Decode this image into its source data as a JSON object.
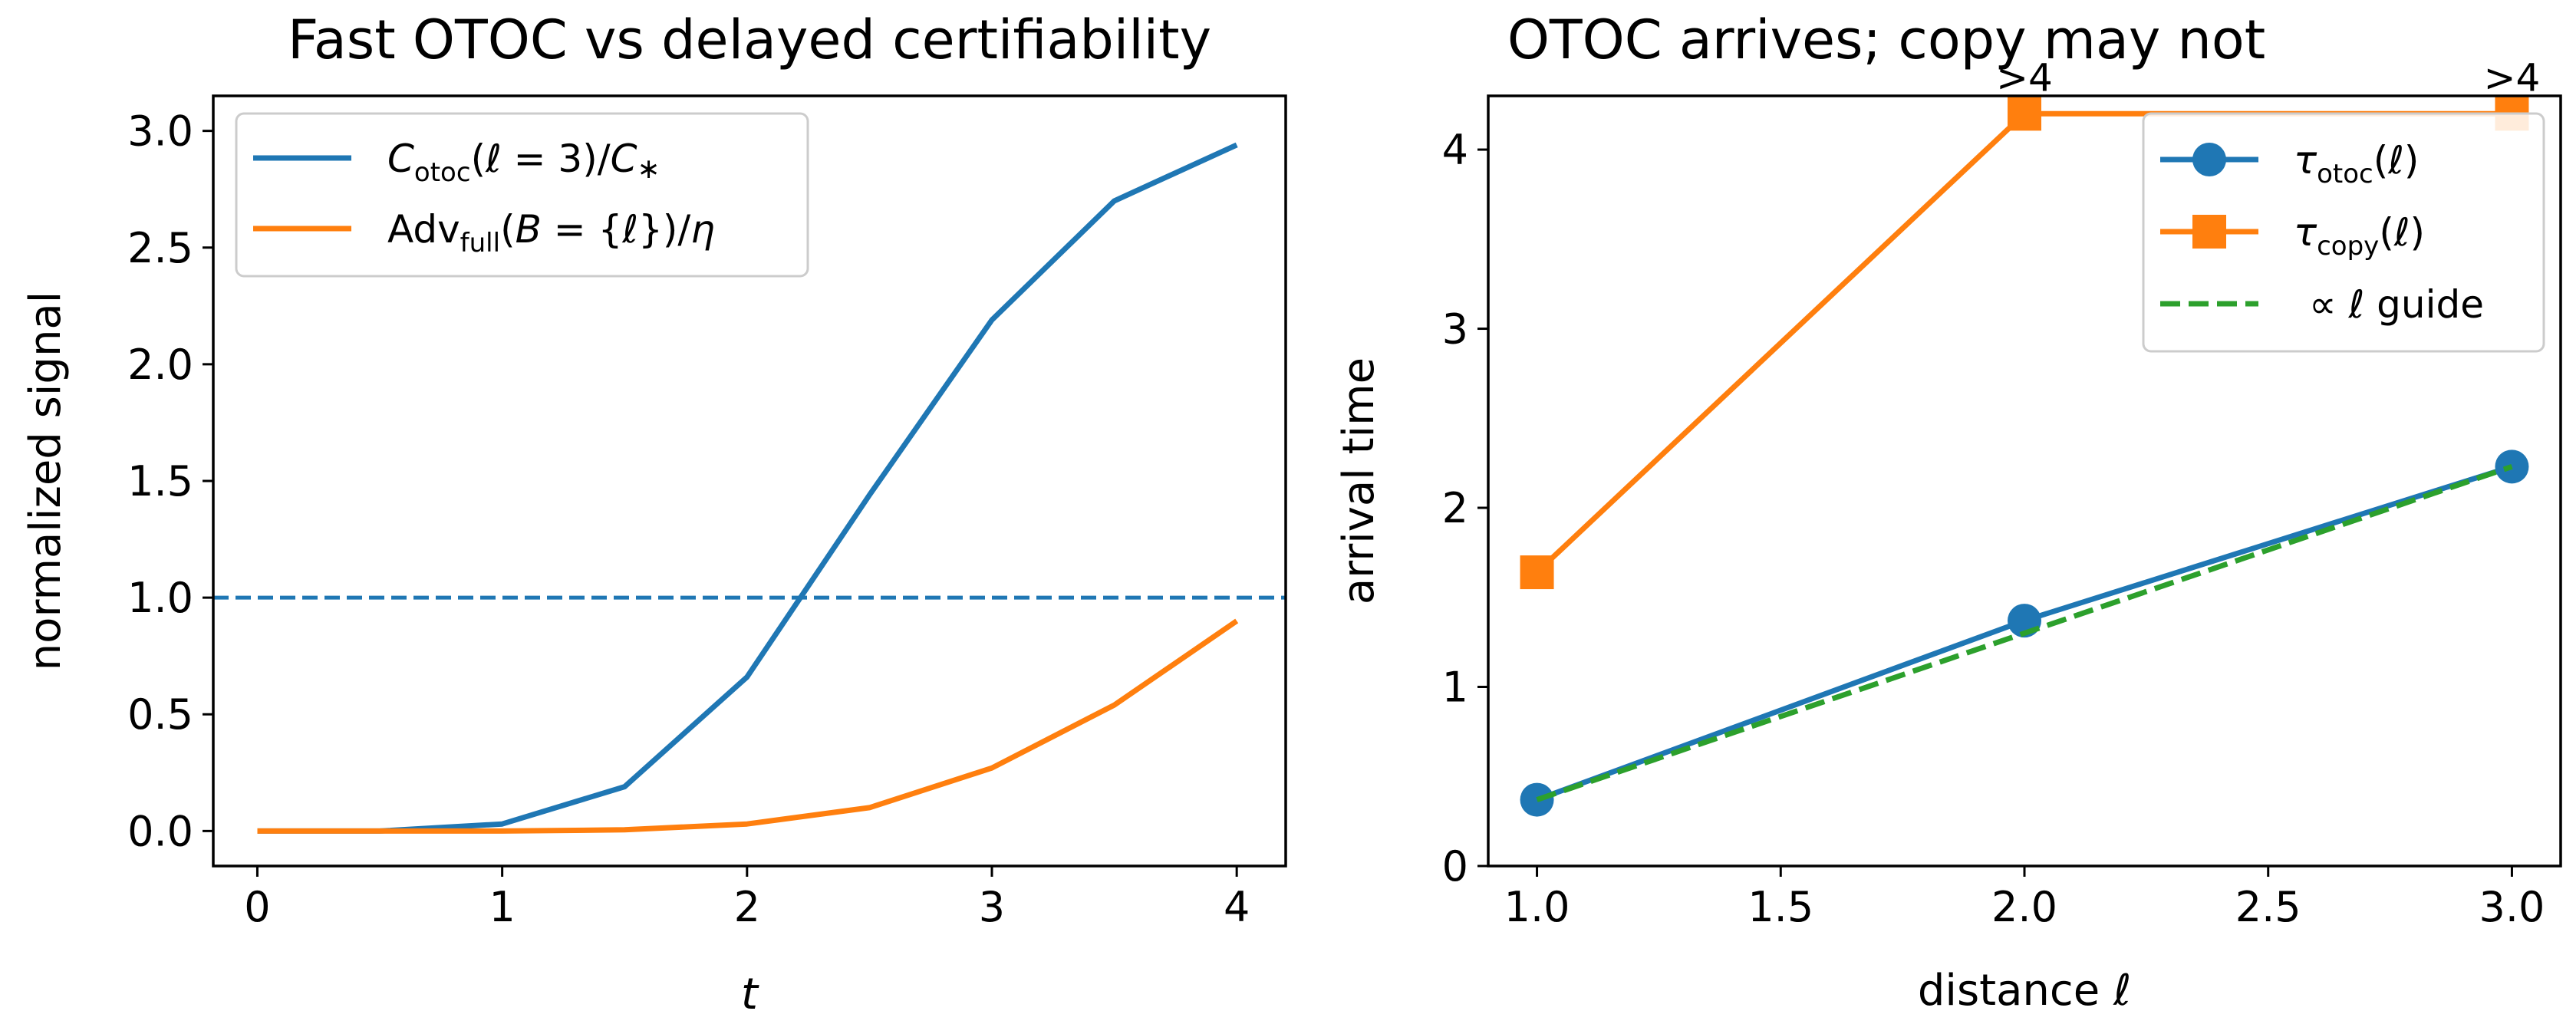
{
  "chart_data": [
    {
      "type": "line",
      "title": "Fast OTOC vs delayed certifiability",
      "xlabel": "t",
      "ylabel": "normalized signal",
      "xlim": [
        -0.18,
        4.2
      ],
      "ylim": [
        -0.15,
        3.15
      ],
      "xticks": [
        0,
        1,
        2,
        3,
        4
      ],
      "yticks": [
        0.0,
        0.5,
        1.0,
        1.5,
        2.0,
        2.5,
        3.0
      ],
      "xtick_labels": [
        "0",
        "1",
        "2",
        "3",
        "4"
      ],
      "ytick_labels": [
        "0.0",
        "0.5",
        "1.0",
        "1.5",
        "2.0",
        "2.5",
        "3.0"
      ],
      "grid": false,
      "legend_position": "upper-left",
      "series": [
        {
          "name": "Cotoc(ℓ = 3)/C*",
          "color": "#1f77b4",
          "x": [
            0,
            0.5,
            1,
            1.5,
            2,
            2.5,
            3,
            3.5,
            4
          ],
          "y": [
            0.0,
            0.0,
            0.03,
            0.19,
            0.66,
            1.44,
            2.19,
            2.7,
            2.94
          ]
        },
        {
          "name": "Advfull(B = {ℓ})/η",
          "color": "#ff7f0e",
          "x": [
            0,
            0.5,
            1,
            1.5,
            2,
            2.5,
            3,
            3.5,
            4
          ],
          "y": [
            0.0,
            0.0,
            0.0,
            0.005,
            0.03,
            0.1,
            0.27,
            0.54,
            0.9
          ]
        }
      ],
      "reference_line": {
        "y": 1.0,
        "style": "dashed",
        "color": "#1f77b4"
      }
    },
    {
      "type": "line",
      "title": "OTOC arrives; copy may not",
      "xlabel": "distance ℓ",
      "ylabel": "arrival time",
      "xlim": [
        0.9,
        3.1
      ],
      "ylim": [
        0,
        4.3
      ],
      "xticks": [
        1.0,
        1.5,
        2.0,
        2.5,
        3.0
      ],
      "yticks": [
        0,
        1,
        2,
        3,
        4
      ],
      "xtick_labels": [
        "1.0",
        "1.5",
        "2.0",
        "2.5",
        "3.0"
      ],
      "ytick_labels": [
        "0",
        "1",
        "2",
        "3",
        "4"
      ],
      "grid": false,
      "legend_position": "upper-right",
      "series": [
        {
          "name": "τotoc(ℓ)",
          "color": "#1f77b4",
          "marker": "circle",
          "x": [
            1,
            2,
            3
          ],
          "y": [
            0.37,
            1.37,
            2.23
          ]
        },
        {
          "name": "τcopy(ℓ)",
          "color": "#ff7f0e",
          "marker": "square",
          "x": [
            1,
            2,
            3
          ],
          "y": [
            1.64,
            4.2,
            4.2
          ]
        },
        {
          "name": "∝ ℓ guide",
          "color": "#2ca02c",
          "style": "dashed",
          "x": [
            1,
            3
          ],
          "y": [
            0.37,
            2.23
          ]
        }
      ],
      "annotations": [
        {
          "text": ">4",
          "x": 2,
          "y": 4.2
        },
        {
          "text": ">4",
          "x": 3,
          "y": 4.2
        }
      ]
    }
  ]
}
